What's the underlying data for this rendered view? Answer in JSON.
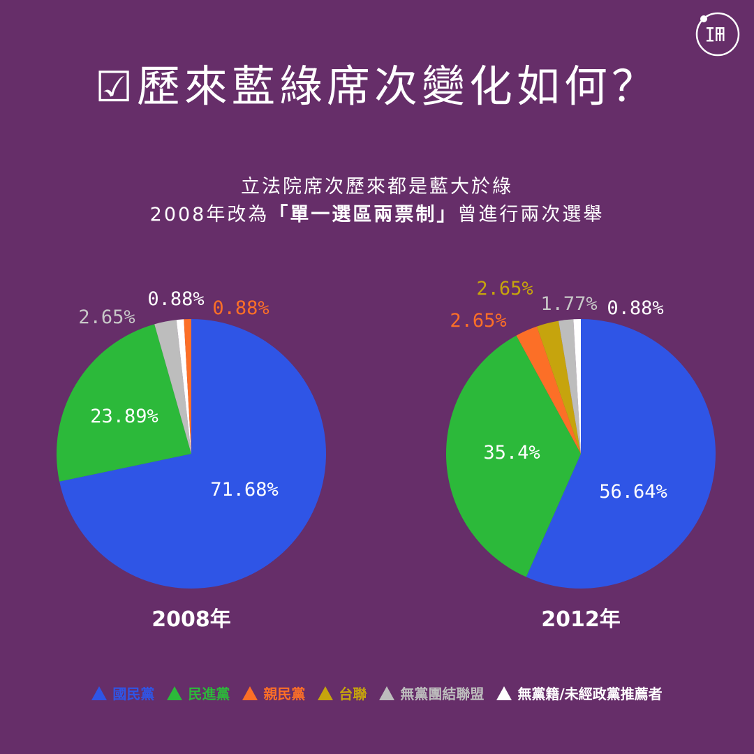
{
  "header": {
    "check_glyph": "☑",
    "title": "歷來藍綠席次變化如何？",
    "subtitle_line1": "立法院席次歷來都是藍大於綠",
    "subtitle_line2_pre": "2008年改為",
    "subtitle_line2_bold": "「單一選區兩票制」",
    "subtitle_line2_post": "曾進行兩次選舉"
  },
  "logo": {
    "icon": "theinitium-logo-icon"
  },
  "colors": {
    "kmt": "#2f55e6",
    "dpp": "#2cb93a",
    "pfp": "#fc6f27",
    "tsu": "#c6a40d",
    "npsu": "#bdbdbd",
    "independent": "#ffffff",
    "background": "#662e69"
  },
  "legend": [
    {
      "label": "國民黨",
      "color": "#2f55e6"
    },
    {
      "label": "民進黨",
      "color": "#2cb93a"
    },
    {
      "label": "親民黨",
      "color": "#fc6f27"
    },
    {
      "label": "台聯",
      "color": "#c6a40d"
    },
    {
      "label": "無黨團結聯盟",
      "color": "#bdbdbd"
    },
    {
      "label": "無黨籍/未經政黨推薦者",
      "color": "#ffffff"
    }
  ],
  "chart_data": [
    {
      "type": "pie",
      "title": "2008年",
      "slices": [
        {
          "name": "國民黨",
          "value": 71.68,
          "label": "71.68%",
          "color": "#2f55e6"
        },
        {
          "name": "民進黨",
          "value": 23.89,
          "label": "23.89%",
          "color": "#2cb93a"
        },
        {
          "name": "無黨團結聯盟",
          "value": 2.65,
          "label": "2.65%",
          "color": "#bdbdbd"
        },
        {
          "name": "無黨籍/未經政黨推薦者",
          "value": 0.88,
          "label": "0.88%",
          "color": "#ffffff"
        },
        {
          "name": "親民黨",
          "value": 0.88,
          "label": "0.88%",
          "color": "#fc6f27"
        }
      ]
    },
    {
      "type": "pie",
      "title": "2012年",
      "slices": [
        {
          "name": "國民黨",
          "value": 56.64,
          "label": "56.64%",
          "color": "#2f55e6"
        },
        {
          "name": "民進黨",
          "value": 35.4,
          "label": "35.4%",
          "color": "#2cb93a"
        },
        {
          "name": "親民黨",
          "value": 2.65,
          "label": "2.65%",
          "color": "#fc6f27"
        },
        {
          "name": "台聯",
          "value": 2.65,
          "label": "2.65%",
          "color": "#c6a40d"
        },
        {
          "name": "無黨團結聯盟",
          "value": 1.77,
          "label": "1.77%",
          "color": "#bdbdbd"
        },
        {
          "name": "無黨籍/未經政黨推薦者",
          "value": 0.88,
          "label": "0.88%",
          "color": "#ffffff"
        }
      ]
    }
  ]
}
